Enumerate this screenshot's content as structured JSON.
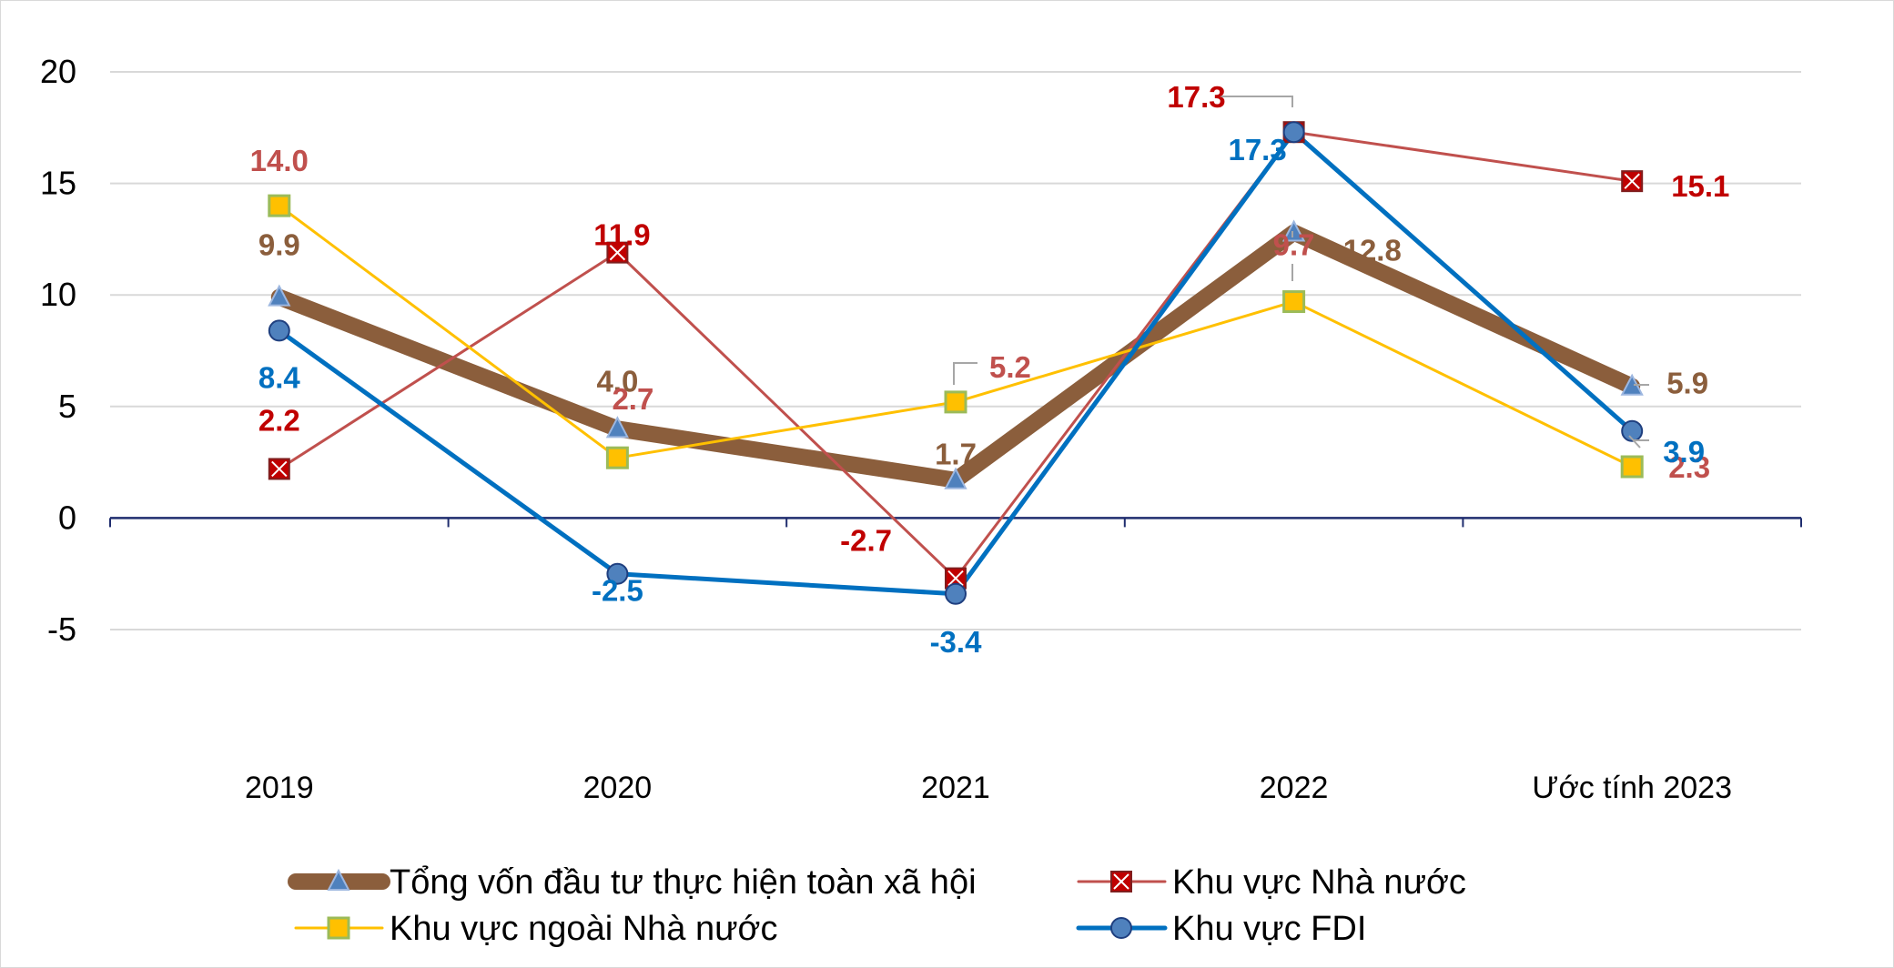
{
  "chart_data": {
    "type": "line",
    "title": "",
    "xlabel": "",
    "ylabel": "",
    "categories": [
      "2019",
      "2020",
      "2021",
      "2022",
      "Ước tính 2023"
    ],
    "ylim": [
      -5,
      20
    ],
    "yticks": [
      "20",
      "15",
      "10",
      "5",
      "0",
      "-5"
    ],
    "grid": true,
    "legend_position": "bottom",
    "series": [
      {
        "name": "Tổng vốn đầu tư thực hiện toàn xã hội",
        "values": [
          9.9,
          4.0,
          1.7,
          12.8,
          5.9
        ],
        "labels": [
          "9.9",
          "4.0",
          "1.7",
          "12.8",
          "5.9"
        ],
        "color": "#8B5E3C",
        "marker": "triangle",
        "marker_fill": "#4F81BD",
        "label_color": "#8B5E3C"
      },
      {
        "name": "Khu vực Nhà nước",
        "values": [
          2.2,
          11.9,
          -2.7,
          17.3,
          15.1
        ],
        "labels": [
          "2.2",
          "11.9",
          "-2.7",
          "17.3",
          "15.1"
        ],
        "color": "#C0504D",
        "marker": "square-x",
        "marker_fill": "#C00000",
        "label_color": "#C00000"
      },
      {
        "name": "Khu vực ngoài Nhà nước",
        "values": [
          14.0,
          2.7,
          5.2,
          9.7,
          2.3
        ],
        "labels": [
          "14.0",
          "2.7",
          "5.2",
          "9.7",
          "2.3"
        ],
        "color": "#FFC000",
        "marker": "square",
        "marker_fill": "#FFC000",
        "label_color": "#C0504D"
      },
      {
        "name": "Khu vực FDI",
        "values": [
          8.4,
          -2.5,
          -3.4,
          17.3,
          3.9
        ],
        "labels": [
          "8.4",
          "-2.5",
          "-3.4",
          "17.3",
          "3.9"
        ],
        "color": "#0070C0",
        "marker": "circle",
        "marker_fill": "#4F81BD",
        "label_color": "#0070C0"
      }
    ]
  }
}
